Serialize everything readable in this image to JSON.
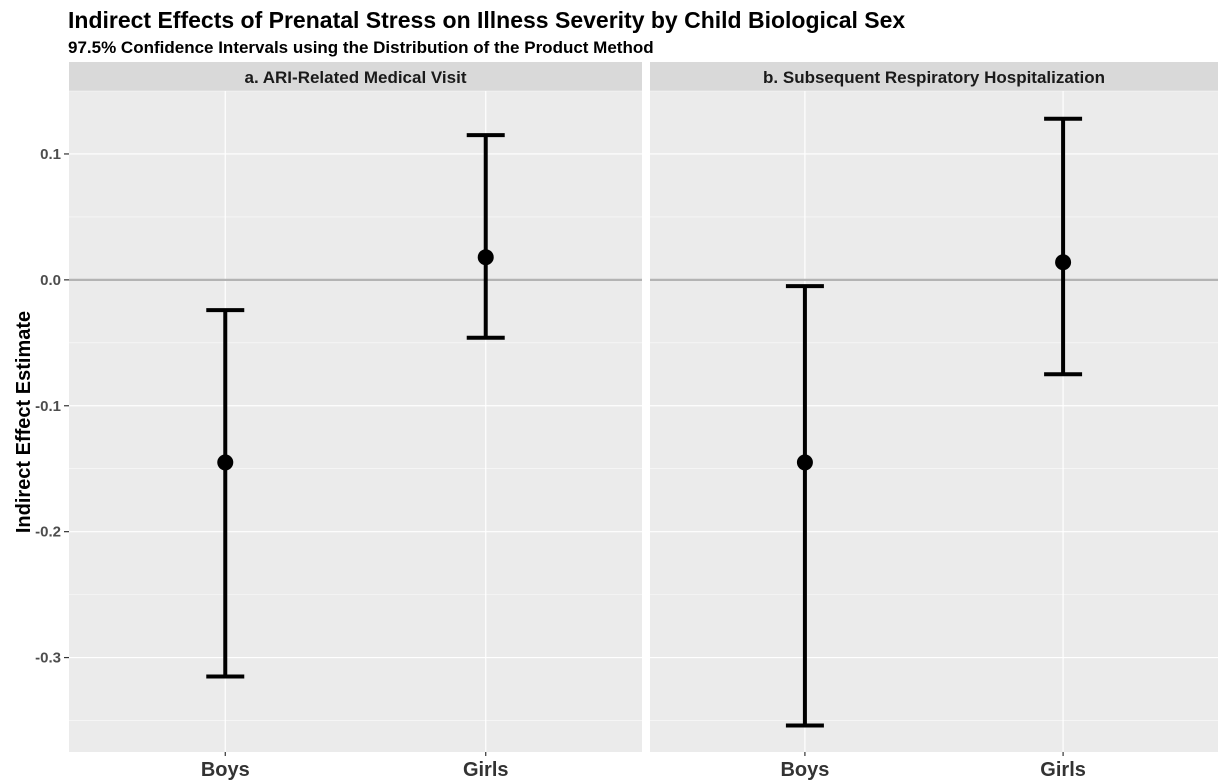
{
  "chart_data": {
    "type": "errorbar",
    "title": "Indirect Effects of Prenatal Stress on Illness Severity by Child Biological Sex",
    "subtitle": "97.5% Confidence Intervals using the Distribution of the Product Method",
    "ylabel": "Indirect Effect Estimate",
    "xlabel": "",
    "categories": [
      "Boys",
      "Girls"
    ],
    "ylim": [
      -0.375,
      0.15
    ],
    "yticks": [
      0.1,
      0.0,
      -0.1,
      -0.2,
      -0.3
    ],
    "ytick_labels": [
      "0.1",
      "0.0",
      "-0.1",
      "-0.2",
      "-0.3"
    ],
    "reference_line": 0.0,
    "grid": true,
    "panels": [
      {
        "label": "a. ARI-Related Medical Visit",
        "points": [
          {
            "category": "Boys",
            "estimate": -0.145,
            "lower": -0.315,
            "upper": -0.024
          },
          {
            "category": "Girls",
            "estimate": 0.018,
            "lower": -0.046,
            "upper": 0.115
          }
        ]
      },
      {
        "label": "b. Subsequent Respiratory Hospitalization",
        "points": [
          {
            "category": "Boys",
            "estimate": -0.145,
            "lower": -0.354,
            "upper": -0.005
          },
          {
            "category": "Girls",
            "estimate": 0.014,
            "lower": -0.075,
            "upper": 0.128
          }
        ]
      }
    ],
    "colors": {
      "panel_background": "#ebebeb",
      "strip_background": "#d9d9d9",
      "gridline": "#ffffff",
      "reference_line": "#b3b3b3",
      "marks": "#000000"
    }
  }
}
